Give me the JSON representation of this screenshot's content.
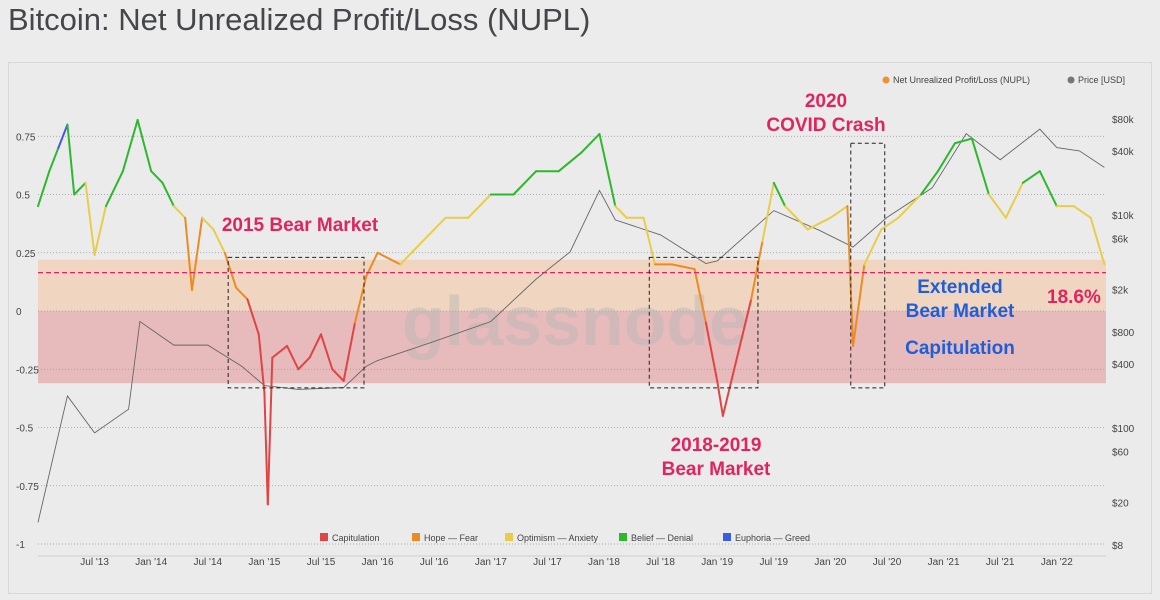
{
  "title": "Bitcoin: Net Unrealized Profit/Loss (NUPL)",
  "watermark": "glassnode",
  "chart_data": {
    "type": "line",
    "title": "Bitcoin: Net Unrealized Profit/Loss (NUPL)",
    "legend_top": [
      {
        "label": "Net Unrealized Profit/Loss (NUPL)",
        "color": "#f0922b"
      },
      {
        "label": "Price [USD]",
        "color": "#777777"
      }
    ],
    "legend_bottom": [
      {
        "label": "Capitulation",
        "color": "#e04444",
        "range": [
          -1,
          0
        ]
      },
      {
        "label": "Hope — Fear",
        "color": "#ee8a22",
        "range": [
          0,
          0.25
        ]
      },
      {
        "label": "Optimism — Anxiety",
        "color": "#e8cd4a",
        "range": [
          0.25,
          0.5
        ]
      },
      {
        "label": "Belief — Denial",
        "color": "#2db82d",
        "range": [
          0.5,
          0.75
        ]
      },
      {
        "label": "Euphoria — Greed",
        "color": "#3b5ee0",
        "range": [
          0.75,
          1
        ]
      }
    ],
    "x_ticks": [
      "Jul '13",
      "Jan '14",
      "Jul '14",
      "Jan '15",
      "Jul '15",
      "Jan '16",
      "Jul '16",
      "Jan '17",
      "Jul '17",
      "Jan '18",
      "Jul '18",
      "Jan '19",
      "Jul '19",
      "Jan '20",
      "Jul '20",
      "Jan '21",
      "Jul '21",
      "Jan '22"
    ],
    "y_left_ticks": [
      {
        "v": 0.75,
        "label": "0.75"
      },
      {
        "v": 0.5,
        "label": "0.5"
      },
      {
        "v": 0.25,
        "label": "0.25"
      },
      {
        "v": 0,
        "label": "0"
      },
      {
        "v": -0.25,
        "label": "-0.25"
      },
      {
        "v": -0.5,
        "label": "-0.5"
      },
      {
        "v": -0.75,
        "label": "-0.75"
      },
      {
        "v": -1,
        "label": "-1"
      }
    ],
    "y_right_ticks": [
      {
        "v": 80000,
        "label": "$80k"
      },
      {
        "v": 40000,
        "label": "$40k"
      },
      {
        "v": 10000,
        "label": "$10k"
      },
      {
        "v": 6000,
        "label": "$6k"
      },
      {
        "v": 2000,
        "label": "$2k"
      },
      {
        "v": 800,
        "label": "$800"
      },
      {
        "v": 400,
        "label": "$400"
      },
      {
        "v": 100,
        "label": "$100"
      },
      {
        "v": 60,
        "label": "$60"
      },
      {
        "v": 20,
        "label": "$20"
      },
      {
        "v": 8,
        "label": "$8"
      }
    ],
    "y_left_range": [
      -1,
      0.85
    ],
    "y_right_scale": "log",
    "y_right_range": [
      8,
      100000
    ],
    "x_range": [
      2013.0,
      2022.45
    ],
    "grid": "horizontal dotted",
    "nupl": [
      [
        2013.0,
        0.45
      ],
      [
        2013.1,
        0.6
      ],
      [
        2013.18,
        0.7
      ],
      [
        2013.26,
        0.8
      ],
      [
        2013.32,
        0.5
      ],
      [
        2013.42,
        0.55
      ],
      [
        2013.5,
        0.24
      ],
      [
        2013.6,
        0.45
      ],
      [
        2013.75,
        0.6
      ],
      [
        2013.88,
        0.82
      ],
      [
        2014.0,
        0.6
      ],
      [
        2014.1,
        0.55
      ],
      [
        2014.2,
        0.45
      ],
      [
        2014.3,
        0.4
      ],
      [
        2014.36,
        0.09
      ],
      [
        2014.45,
        0.4
      ],
      [
        2014.55,
        0.35
      ],
      [
        2014.65,
        0.25
      ],
      [
        2014.75,
        0.1
      ],
      [
        2014.85,
        0.05
      ],
      [
        2014.95,
        -0.1
      ],
      [
        2015.0,
        -0.35
      ],
      [
        2015.03,
        -0.83
      ],
      [
        2015.07,
        -0.2
      ],
      [
        2015.2,
        -0.15
      ],
      [
        2015.3,
        -0.25
      ],
      [
        2015.4,
        -0.2
      ],
      [
        2015.5,
        -0.1
      ],
      [
        2015.6,
        -0.25
      ],
      [
        2015.7,
        -0.3
      ],
      [
        2015.8,
        -0.05
      ],
      [
        2015.9,
        0.15
      ],
      [
        2016.0,
        0.25
      ],
      [
        2016.2,
        0.2
      ],
      [
        2016.4,
        0.3
      ],
      [
        2016.6,
        0.4
      ],
      [
        2016.8,
        0.4
      ],
      [
        2017.0,
        0.5
      ],
      [
        2017.2,
        0.5
      ],
      [
        2017.4,
        0.6
      ],
      [
        2017.6,
        0.6
      ],
      [
        2017.8,
        0.68
      ],
      [
        2017.96,
        0.76
      ],
      [
        2018.1,
        0.45
      ],
      [
        2018.2,
        0.4
      ],
      [
        2018.35,
        0.4
      ],
      [
        2018.45,
        0.2
      ],
      [
        2018.6,
        0.2
      ],
      [
        2018.8,
        0.18
      ],
      [
        2018.9,
        -0.05
      ],
      [
        2019.0,
        -0.3
      ],
      [
        2019.05,
        -0.45
      ],
      [
        2019.15,
        -0.25
      ],
      [
        2019.3,
        0.05
      ],
      [
        2019.4,
        0.3
      ],
      [
        2019.5,
        0.55
      ],
      [
        2019.6,
        0.45
      ],
      [
        2019.8,
        0.35
      ],
      [
        2020.0,
        0.4
      ],
      [
        2020.15,
        0.45
      ],
      [
        2020.2,
        -0.15
      ],
      [
        2020.3,
        0.2
      ],
      [
        2020.45,
        0.35
      ],
      [
        2020.6,
        0.4
      ],
      [
        2020.8,
        0.5
      ],
      [
        2020.95,
        0.6
      ],
      [
        2021.1,
        0.72
      ],
      [
        2021.25,
        0.74
      ],
      [
        2021.4,
        0.5
      ],
      [
        2021.55,
        0.4
      ],
      [
        2021.7,
        0.55
      ],
      [
        2021.85,
        0.6
      ],
      [
        2022.0,
        0.45
      ],
      [
        2022.15,
        0.45
      ],
      [
        2022.3,
        0.4
      ],
      [
        2022.42,
        0.2
      ]
    ],
    "price": [
      [
        2013.0,
        13
      ],
      [
        2013.26,
        200
      ],
      [
        2013.5,
        90
      ],
      [
        2013.8,
        150
      ],
      [
        2013.9,
        1000
      ],
      [
        2014.2,
        600
      ],
      [
        2014.5,
        600
      ],
      [
        2014.8,
        380
      ],
      [
        2015.0,
        250
      ],
      [
        2015.3,
        230
      ],
      [
        2015.7,
        240
      ],
      [
        2015.9,
        380
      ],
      [
        2016.0,
        430
      ],
      [
        2016.5,
        650
      ],
      [
        2017.0,
        1000
      ],
      [
        2017.4,
        2500
      ],
      [
        2017.7,
        4500
      ],
      [
        2017.96,
        17000
      ],
      [
        2018.1,
        9000
      ],
      [
        2018.5,
        6500
      ],
      [
        2018.9,
        3500
      ],
      [
        2019.0,
        3700
      ],
      [
        2019.5,
        11000
      ],
      [
        2019.9,
        7200
      ],
      [
        2020.2,
        5000
      ],
      [
        2020.5,
        9500
      ],
      [
        2020.9,
        18000
      ],
      [
        2021.2,
        58000
      ],
      [
        2021.5,
        33000
      ],
      [
        2021.85,
        64000
      ],
      [
        2022.0,
        43000
      ],
      [
        2022.2,
        40000
      ],
      [
        2022.42,
        28000
      ]
    ],
    "threshold": {
      "value": 0.186,
      "label": "18.6%",
      "color": "#e0245e"
    },
    "bands": [
      {
        "from": 0.0,
        "to": 0.22,
        "color": "#f1d2b9"
      },
      {
        "from": -0.31,
        "to": 0.0,
        "color": "#e6b1b3"
      }
    ],
    "boxes": [
      {
        "x": [
          2014.68,
          2015.88
        ],
        "y": [
          -0.33,
          0.23
        ]
      },
      {
        "x": [
          2018.4,
          2019.36
        ],
        "y": [
          -0.33,
          0.23
        ]
      },
      {
        "x": [
          2020.18,
          2020.48
        ],
        "y": [
          -0.33,
          0.72
        ]
      }
    ],
    "annotations": [
      {
        "lines": [
          "2015 Bear Market"
        ],
        "color": "red"
      },
      {
        "lines": [
          "2020",
          "COVID Crash"
        ],
        "color": "red"
      },
      {
        "lines": [
          "2018-2019",
          "Bear Market"
        ],
        "color": "red"
      },
      {
        "lines": [
          "Extended",
          "Bear Market"
        ],
        "color": "blue"
      },
      {
        "lines": [
          "Capitulation"
        ],
        "color": "blue"
      }
    ]
  }
}
